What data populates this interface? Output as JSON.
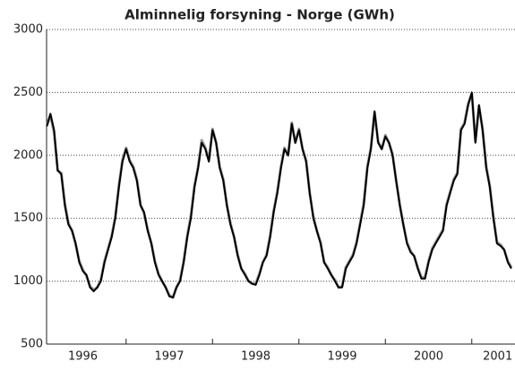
{
  "chart_data": {
    "type": "line",
    "title": "Alminnelig forsyning - Norge (GWh)",
    "x": [
      1996.083,
      1996.125,
      1996.167,
      1996.208,
      1996.25,
      1996.292,
      1996.333,
      1996.375,
      1996.417,
      1996.458,
      1996.5,
      1996.542,
      1996.583,
      1996.625,
      1996.667,
      1996.708,
      1996.75,
      1996.792,
      1996.833,
      1996.875,
      1996.917,
      1996.958,
      1997.0,
      1997.042,
      1997.083,
      1997.125,
      1997.167,
      1997.208,
      1997.25,
      1997.292,
      1997.333,
      1997.375,
      1997.417,
      1997.458,
      1997.5,
      1997.542,
      1997.583,
      1997.625,
      1997.667,
      1997.708,
      1997.75,
      1997.792,
      1997.833,
      1997.875,
      1997.917,
      1997.958,
      1998.0,
      1998.042,
      1998.083,
      1998.125,
      1998.167,
      1998.208,
      1998.25,
      1998.292,
      1998.333,
      1998.375,
      1998.417,
      1998.458,
      1998.5,
      1998.542,
      1998.583,
      1998.625,
      1998.667,
      1998.708,
      1998.75,
      1998.792,
      1998.833,
      1998.875,
      1998.917,
      1998.958,
      1999.0,
      1999.042,
      1999.083,
      1999.125,
      1999.167,
      1999.208,
      1999.25,
      1999.292,
      1999.333,
      1999.375,
      1999.417,
      1999.458,
      1999.5,
      1999.542,
      1999.583,
      1999.625,
      1999.667,
      1999.708,
      1999.75,
      1999.792,
      1999.833,
      1999.875,
      1999.917,
      1999.958,
      2000.0,
      2000.042,
      2000.083,
      2000.125,
      2000.167,
      2000.208,
      2000.25,
      2000.292,
      2000.333,
      2000.375,
      2000.417,
      2000.458,
      2000.5,
      2000.542,
      2000.583,
      2000.625,
      2000.667,
      2000.708,
      2000.75,
      2000.792,
      2000.833,
      2000.875,
      2000.917,
      2000.958,
      2001.0,
      2001.042,
      2001.083,
      2001.125,
      2001.167,
      2001.208,
      2001.25,
      2001.292,
      2001.333,
      2001.375,
      2001.417,
      2001.458
    ],
    "series": [
      {
        "color": "#999999",
        "values": [
          2240,
          2320,
          2180,
          1880,
          1860,
          1610,
          1460,
          1400,
          1290,
          1160,
          1090,
          1040,
          960,
          930,
          950,
          1010,
          1160,
          1260,
          1360,
          1510,
          1760,
          1960,
          2060,
          1960,
          1910,
          1810,
          1610,
          1540,
          1410,
          1300,
          1160,
          1060,
          1000,
          950,
          890,
          870,
          950,
          1010,
          1160,
          1360,
          1520,
          1760,
          1910,
          2120,
          2060,
          1960,
          2210,
          2100,
          1910,
          1810,
          1600,
          1460,
          1350,
          1210,
          1100,
          1060,
          1000,
          980,
          980,
          1060,
          1150,
          1210,
          1360,
          1560,
          1710,
          1910,
          2060,
          2000,
          2260,
          2100,
          2210,
          2050,
          1960,
          1700,
          1510,
          1400,
          1310,
          1150,
          1110,
          1050,
          1010,
          950,
          960,
          1110,
          1160,
          1210,
          1310,
          1460,
          1620,
          1910,
          2060,
          2340,
          2110,
          2050,
          2160,
          2100,
          2010,
          1800,
          1610,
          1450,
          1310,
          1240,
          1200,
          1110,
          1030,
          1030,
          1160,
          1260,
          1310,
          1360,
          1410,
          1610,
          1710,
          1810,
          1860,
          2210,
          2260,
          2410,
          2490,
          2110,
          2390,
          2210,
          1910,
          1760,
          1510,
          1310,
          1290,
          1250,
          1160,
          1110
        ]
      },
      {
        "color": "#000000",
        "values": [
          2230,
          2330,
          2200,
          1880,
          1850,
          1600,
          1450,
          1400,
          1300,
          1150,
          1080,
          1050,
          950,
          920,
          950,
          1000,
          1150,
          1250,
          1350,
          1500,
          1750,
          1950,
          2050,
          1950,
          1900,
          1800,
          1600,
          1550,
          1400,
          1300,
          1150,
          1050,
          1000,
          950,
          880,
          870,
          950,
          1000,
          1150,
          1350,
          1500,
          1750,
          1900,
          2100,
          2050,
          1950,
          2200,
          2100,
          1900,
          1800,
          1600,
          1450,
          1350,
          1200,
          1100,
          1050,
          1000,
          980,
          970,
          1050,
          1150,
          1200,
          1350,
          1550,
          1700,
          1900,
          2050,
          2000,
          2250,
          2100,
          2200,
          2050,
          1950,
          1700,
          1500,
          1400,
          1300,
          1150,
          1100,
          1050,
          1000,
          950,
          950,
          1100,
          1150,
          1200,
          1300,
          1450,
          1600,
          1900,
          2050,
          2350,
          2100,
          2050,
          2150,
          2100,
          2000,
          1800,
          1600,
          1450,
          1300,
          1230,
          1200,
          1100,
          1020,
          1020,
          1150,
          1250,
          1300,
          1350,
          1400,
          1600,
          1700,
          1800,
          1850,
          2200,
          2250,
          2400,
          2500,
          2100,
          2400,
          2200,
          1900,
          1750,
          1500,
          1300,
          1280,
          1250,
          1150,
          1100
        ]
      }
    ],
    "xlim": [
      1996.08,
      2001.5
    ],
    "x_tick_marks": [
      1997,
      1998,
      1999,
      2000,
      2001
    ],
    "x_labels": [
      {
        "value": 1996.5,
        "label": "1996"
      },
      {
        "value": 1997.5,
        "label": "1997"
      },
      {
        "value": 1998.5,
        "label": "1998"
      },
      {
        "value": 1999.5,
        "label": "1999"
      },
      {
        "value": 2000.5,
        "label": "2000"
      },
      {
        "value": 2001.3,
        "label": "2001"
      }
    ],
    "ylim": [
      500,
      3000
    ],
    "yticks": [
      500,
      1000,
      1500,
      2000,
      2500,
      3000
    ],
    "grid": true
  }
}
